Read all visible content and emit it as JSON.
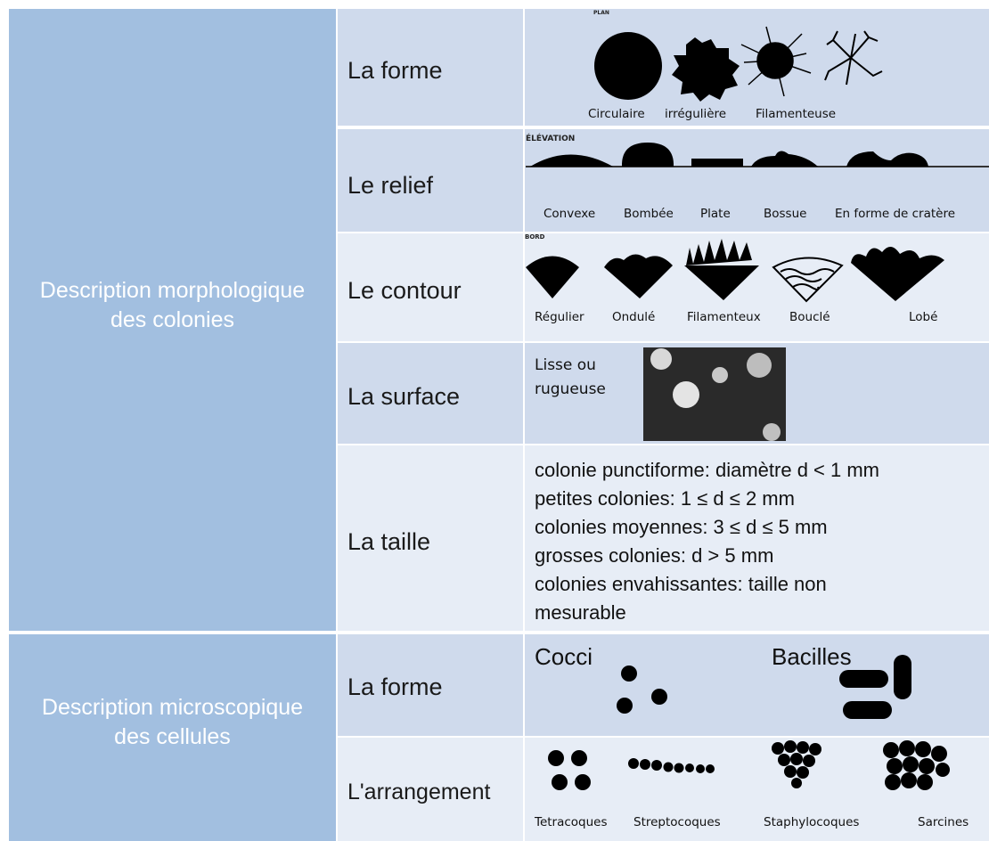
{
  "groups": [
    {
      "title": "Description morphologique des colonies",
      "rows": [
        {
          "label": "La forme",
          "caption": "PLAN",
          "items": [
            "Circulaire",
            "irrégulière",
            "Filamenteuse"
          ]
        },
        {
          "label": "Le relief",
          "caption": "ÉLÉVATION",
          "items": [
            "Convexe",
            "Bombée",
            "Plate",
            "Bossue",
            "En forme de cratère"
          ]
        },
        {
          "label": "Le contour",
          "caption": "BORD",
          "items": [
            "Régulier",
            "Ondulé",
            "Filamenteux",
            "Bouclé",
            "Lobé"
          ]
        },
        {
          "label": "La surface",
          "items": [
            "Lisse ou rugueuse"
          ]
        },
        {
          "label": "La taille",
          "items": [
            "colonie punctiforme: diamètre d < 1 mm",
            "petites colonies: 1 ≤ d ≤ 2 mm",
            "colonies moyennes: 3 ≤ d ≤ 5 mm",
            "grosses colonies: d > 5 mm",
            "colonies envahissantes: taille non mesurable"
          ]
        }
      ]
    },
    {
      "title": "Description microscopique des cellules",
      "rows": [
        {
          "label": "La forme",
          "items": [
            "Cocci",
            "Bacilles"
          ]
        },
        {
          "label": "L'arrangement",
          "items": [
            "Tetracoques",
            "Streptocoques",
            "Staphylocoques",
            "Sarcines"
          ]
        }
      ]
    }
  ]
}
